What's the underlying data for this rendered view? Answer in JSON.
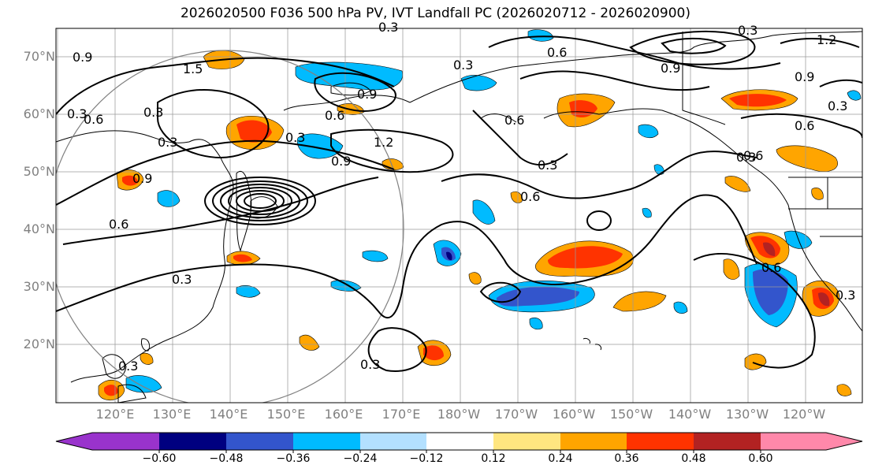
{
  "title": "2026020500 F036 500 hPa PV, IVT Landfall PC (2026020712 - 2026020900)",
  "lat_labels": [
    "70°N",
    "60°N",
    "50°N",
    "40°N",
    "30°N",
    "20°N"
  ],
  "lon_labels": [
    "120°E",
    "130°E",
    "140°E",
    "150°E",
    "160°E",
    "170°E",
    "180°W",
    "170°W",
    "160°W",
    "150°W",
    "140°W",
    "130°W",
    "120°W"
  ],
  "contour_labels": [
    "0.3",
    "0.9",
    "1.5",
    "0.3",
    "0.6",
    "0.3",
    "0.9",
    "0.3",
    "0.6",
    "0.3",
    "1.2",
    "0.9",
    "0.9",
    "0.6",
    "0.3",
    "0.3",
    "0.6",
    "0.6",
    "0.3",
    "0.6",
    "0.3",
    "0.3",
    "0.6",
    "0.3",
    "0.9",
    "0.6",
    "0.3",
    "1.2",
    "0.9",
    "0.3",
    "0.6",
    "0.3"
  ],
  "colorbar": {
    "ticks": [
      "−0.60",
      "−0.48",
      "−0.36",
      "−0.24",
      "−0.12",
      "0.12",
      "0.24",
      "0.36",
      "0.48",
      "0.60"
    ],
    "colors": [
      "#9933cc",
      "#000080",
      "#3355cc",
      "#00bbff",
      "#b3e0ff",
      "#ffffff",
      "#ffe680",
      "#ffa500",
      "#ff3300",
      "#b22222",
      "#ff88aa"
    ]
  }
}
